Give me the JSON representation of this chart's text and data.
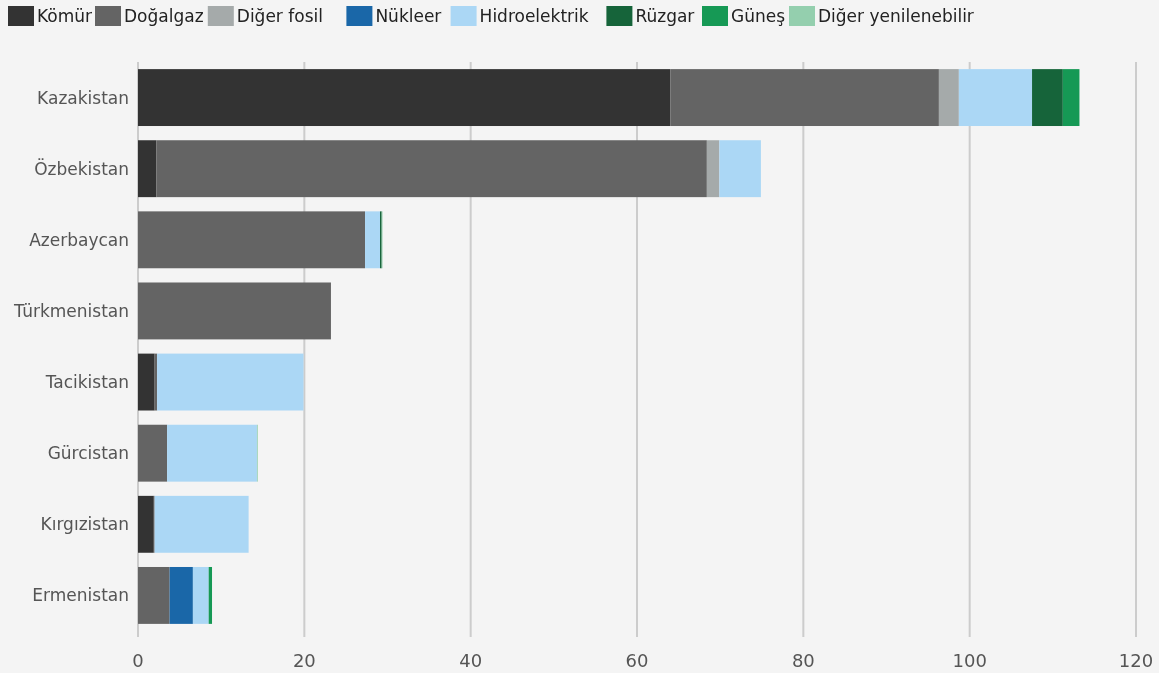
{
  "chart_data": {
    "type": "bar",
    "orientation": "horizontal",
    "stacked": true,
    "categories": [
      "Kazakistan",
      "Özbekistan",
      "Azerbaycan",
      "Türkmenistan",
      "Tacikistan",
      "Gürcistan",
      "Kırgızistan",
      "Ermenistan"
    ],
    "series": [
      {
        "name": "Kömür",
        "color": "#333333",
        "values": [
          64.0,
          2.2,
          null,
          null,
          2.0,
          null,
          1.9,
          null
        ]
      },
      {
        "name": "Doğalgaz",
        "color": "#646464",
        "values": [
          32.3,
          66.2,
          27.3,
          23.2,
          0.3,
          3.5,
          0.1,
          3.8
        ]
      },
      {
        "name": "Diğer fosil",
        "color": "#a5aaaa",
        "values": [
          2.4,
          1.5,
          null,
          null,
          null,
          null,
          null,
          null
        ]
      },
      {
        "name": "Nükleer",
        "color": "#1a67a8",
        "values": [
          null,
          null,
          null,
          null,
          null,
          null,
          null,
          2.8
        ]
      },
      {
        "name": "Hidroelektrik",
        "color": "#abd7f5",
        "values": [
          8.8,
          5.0,
          1.8,
          null,
          17.6,
          10.8,
          11.3,
          1.9
        ]
      },
      {
        "name": "Rüzgar",
        "color": "#16643a",
        "values": [
          3.7,
          null,
          0.2,
          null,
          null,
          null,
          null,
          null
        ]
      },
      {
        "name": "Güneş",
        "color": "#169955",
        "values": [
          2.0,
          null,
          null,
          null,
          null,
          null,
          null,
          0.4
        ]
      },
      {
        "name": "Diğer yenilenebilir",
        "color": "#94cfae",
        "values": [
          null,
          null,
          0.1,
          null,
          null,
          0.1,
          null,
          null
        ]
      }
    ],
    "xlim": [
      0,
      120
    ],
    "xticks": [
      0,
      20,
      40,
      60,
      80,
      100,
      120
    ],
    "grid": "x",
    "legend": "top left"
  }
}
